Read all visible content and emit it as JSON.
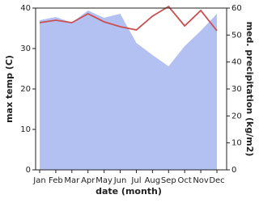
{
  "chart_data": {
    "type": "line",
    "x_label": "date (month)",
    "y_label": "max temp (C)",
    "y2_label": "med. precipitation (kg/m2)",
    "categories": [
      "Jan",
      "Feb",
      "Mar",
      "Apr",
      "May",
      "Jun",
      "Jul",
      "Aug",
      "Sep",
      "Oct",
      "Nov",
      "Dec"
    ],
    "series": [
      {
        "name": "med. precipitation (kg/m2)",
        "color": "#b3c0f2",
        "axis": "y2",
        "kind": "area",
        "values": [
          55.5,
          56.7,
          54.6,
          59.1,
          56.4,
          57.9,
          47.1,
          42.6,
          38.4,
          45.9,
          51.6,
          57.9
        ]
      },
      {
        "name": "max temp (C)",
        "color": "#c95050",
        "kind": "line",
        "values": [
          36.4,
          37,
          36.4,
          38.6,
          36.6,
          35.4,
          34.6,
          38,
          40.4,
          35.6,
          39.4,
          34.4
        ]
      }
    ],
    "ylim": [
      0,
      40
    ],
    "yticks": [
      0,
      10,
      20,
      30,
      40
    ],
    "y2lim": [
      0,
      60
    ],
    "y2ticks": [
      0,
      10,
      20,
      30,
      40,
      50,
      60
    ]
  }
}
